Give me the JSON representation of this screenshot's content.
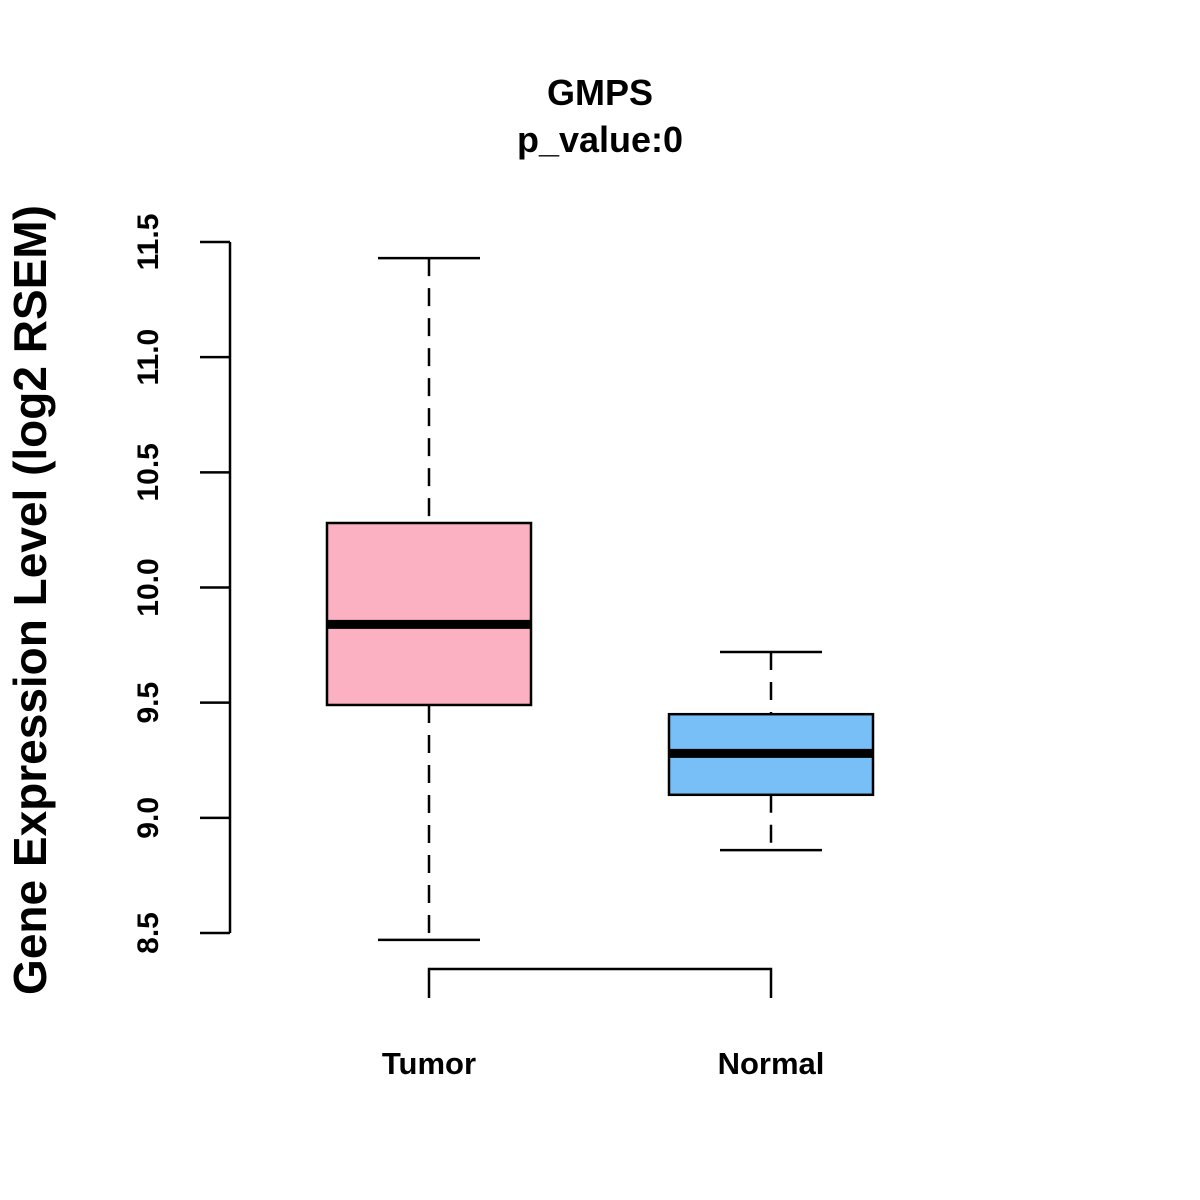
{
  "chart_data": {
    "type": "boxplot",
    "title": "GMPS",
    "subtitle": "p_value:0",
    "ylabel": "Gene Expression Level (log2 RSEM)",
    "xlabel": "",
    "ylim": [
      8.5,
      11.5
    ],
    "yticks": [
      8.5,
      9.0,
      9.5,
      10.0,
      10.5,
      11.0,
      11.5
    ],
    "ytick_labels": [
      "8.5",
      "9.0",
      "9.5",
      "10.0",
      "10.5",
      "11.0",
      "11.5"
    ],
    "categories": [
      "Tumor",
      "Normal"
    ],
    "boxes": [
      {
        "name": "Tumor",
        "min": 8.47,
        "q1": 9.49,
        "median": 9.84,
        "q3": 10.28,
        "max": 11.43,
        "color": "#FBB1C2"
      },
      {
        "name": "Normal",
        "min": 8.86,
        "q1": 9.1,
        "median": 9.28,
        "q3": 9.45,
        "max": 9.72,
        "color": "#78BFF8"
      }
    ],
    "comparison_bracket": [
      "Tumor",
      "Normal"
    ],
    "grid": false,
    "legend": "none"
  }
}
